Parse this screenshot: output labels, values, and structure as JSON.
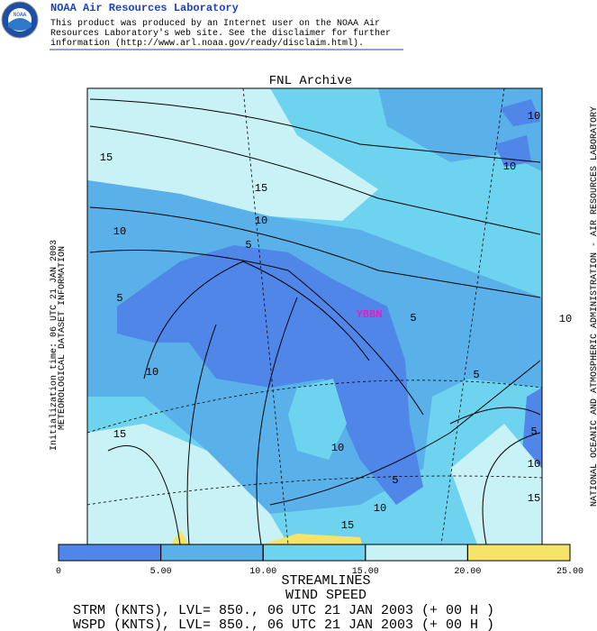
{
  "header": {
    "title": "NOAA Air Resources Laboratory",
    "logo_text": "NOAA",
    "disclaimer": [
      "This product was produced by an Internet user on the NOAA Air",
      "Resources Laboratory's web site.  See the disclaimer for further",
      "information (http://www.arl.noaa.gov/ready/disclaim.html)."
    ]
  },
  "map": {
    "title": "FNL Archive",
    "station": "YBBN",
    "contour_labels": [
      10,
      10,
      15,
      15,
      10,
      10,
      5,
      5,
      5,
      10,
      10,
      5,
      15,
      10,
      5,
      10,
      5,
      10,
      15,
      15
    ],
    "left_side": [
      "METEOROLOGICAL DATASET INFORMATION",
      "Initialization time: 06 UTC 21 JAN 2003"
    ],
    "right_side": "NATIONAL OCEANIC AND ATMOSPHERIC ADMINISTRATION - AIR RESOURCES LABORATORY"
  },
  "colorbar": {
    "ticks": [
      0,
      {
        "value": 5,
        "label": "5.00"
      },
      {
        "value": 10,
        "label": "10.00"
      },
      {
        "value": 15,
        "label": "15.00"
      },
      {
        "value": 20,
        "label": "20.00"
      },
      {
        "value": 25,
        "label": "25.00"
      }
    ],
    "colors": [
      "#4f86e8",
      "#5ab0e8",
      "#6dd3ee",
      "#c8f2f5",
      "#f5e36a"
    ]
  },
  "footer": {
    "lines": [
      "STREAMLINES",
      "WIND SPEED",
      "STRM (KNTS),  LVL= 850., 06 UTC 21 JAN 2003 (+ 00 H )",
      "WSPD (KNTS),  LVL= 850., 06 UTC 21 JAN 2003 (+ 00 H )"
    ]
  }
}
